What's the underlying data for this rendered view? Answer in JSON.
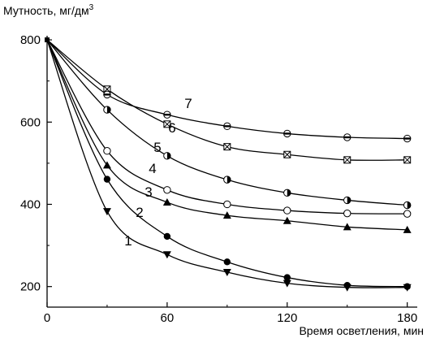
{
  "chart_data": {
    "type": "scatter",
    "ylabel": "Мутность, мг/дм",
    "ylabel_sup": "3",
    "xlabel": "Время осветления, мин",
    "xlim": [
      0,
      185
    ],
    "ylim": [
      150,
      810
    ],
    "x_ticks": [
      0,
      60,
      120,
      180
    ],
    "y_ticks": [
      200,
      400,
      600,
      800
    ],
    "grid": false,
    "series": [
      {
        "name": "1",
        "marker": "triangle-down",
        "points": [
          [
            0,
            800
          ],
          [
            30,
            383
          ],
          [
            60,
            278
          ],
          [
            90,
            235
          ],
          [
            120,
            208
          ],
          [
            150,
            198
          ],
          [
            180,
            198
          ]
        ]
      },
      {
        "name": "2",
        "marker": "filled-circle",
        "points": [
          [
            0,
            800
          ],
          [
            30,
            461
          ],
          [
            60,
            322
          ],
          [
            90,
            260
          ],
          [
            120,
            222
          ],
          [
            150,
            203
          ],
          [
            180,
            200
          ]
        ]
      },
      {
        "name": "3",
        "marker": "triangle-up",
        "points": [
          [
            0,
            800
          ],
          [
            30,
            495
          ],
          [
            60,
            405
          ],
          [
            90,
            373
          ],
          [
            120,
            360
          ],
          [
            150,
            345
          ],
          [
            180,
            338
          ]
        ]
      },
      {
        "name": "4",
        "marker": "open-circle",
        "points": [
          [
            0,
            800
          ],
          [
            30,
            530
          ],
          [
            60,
            435
          ],
          [
            90,
            400
          ],
          [
            120,
            385
          ],
          [
            150,
            378
          ],
          [
            180,
            377
          ]
        ]
      },
      {
        "name": "5",
        "marker": "half-circle",
        "points": [
          [
            0,
            800
          ],
          [
            30,
            630
          ],
          [
            60,
            518
          ],
          [
            90,
            460
          ],
          [
            120,
            428
          ],
          [
            150,
            410
          ],
          [
            180,
            398
          ]
        ]
      },
      {
        "name": "6",
        "marker": "crossed-square",
        "points": [
          [
            0,
            800
          ],
          [
            30,
            680
          ],
          [
            60,
            595
          ],
          [
            90,
            540
          ],
          [
            120,
            521
          ],
          [
            150,
            508
          ],
          [
            180,
            508
          ]
        ]
      },
      {
        "name": "7",
        "marker": "barred-circle",
        "points": [
          [
            0,
            800
          ],
          [
            30,
            667
          ],
          [
            60,
            618
          ],
          [
            90,
            590
          ],
          [
            120,
            572
          ],
          [
            150,
            563
          ],
          [
            180,
            560
          ]
        ]
      }
    ]
  }
}
